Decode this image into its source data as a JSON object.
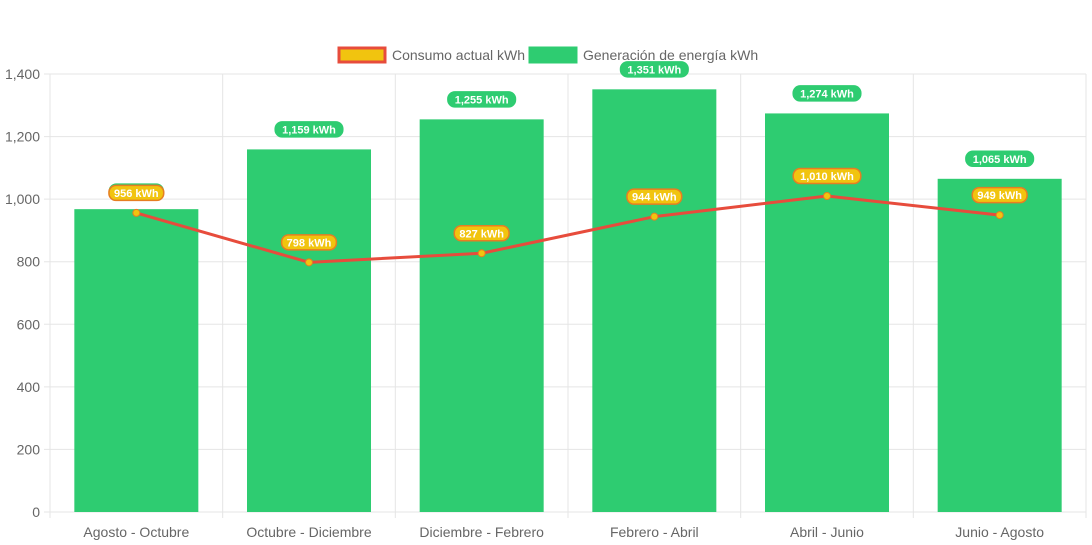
{
  "chart_data": {
    "type": "bar",
    "categories": [
      "Agosto - Octubre",
      "Octubre - Diciembre",
      "Diciembre - Febrero",
      "Febrero - Abril",
      "Abril - Junio",
      "Junio - Agosto"
    ],
    "series": [
      {
        "name": "Consumo actual kWh",
        "type": "line",
        "values": [
          956,
          798,
          827,
          944,
          1010,
          949
        ],
        "labels": [
          "956 kWh",
          "798 kWh",
          "827 kWh",
          "944 kWh",
          "1,010 kWh",
          "949 kWh"
        ],
        "line_color": "#e74c3c",
        "point_color": "#f1c40f",
        "label_color": "#f1c40f",
        "label_border": "#e67e22"
      },
      {
        "name": "Generación de energía kWh",
        "type": "bar",
        "values": [
          968,
          1159,
          1255,
          1351,
          1274,
          1065
        ],
        "labels": [
          "",
          "1,159 kWh",
          "1,255 kWh",
          "1,351 kWh",
          "1,274 kWh",
          "1,065 kWh"
        ],
        "color": "#2ecc71"
      }
    ],
    "title": "",
    "xlabel": "",
    "ylabel": "",
    "ylim": [
      0,
      1400
    ],
    "yticks": [
      0,
      200,
      400,
      600,
      800,
      1000,
      1200,
      1400
    ],
    "ytick_labels": [
      "0",
      "200",
      "400",
      "600",
      "800",
      "1,000",
      "1,200",
      "1,400"
    ],
    "grid": true,
    "legend_position": "top-center",
    "legend": [
      {
        "label": "Consumo actual kWh",
        "fill": "#f1c40f",
        "stroke": "#e74c3c"
      },
      {
        "label": "Generación de energía kWh",
        "fill": "#2ecc71",
        "stroke": "#2ecc71"
      }
    ]
  }
}
